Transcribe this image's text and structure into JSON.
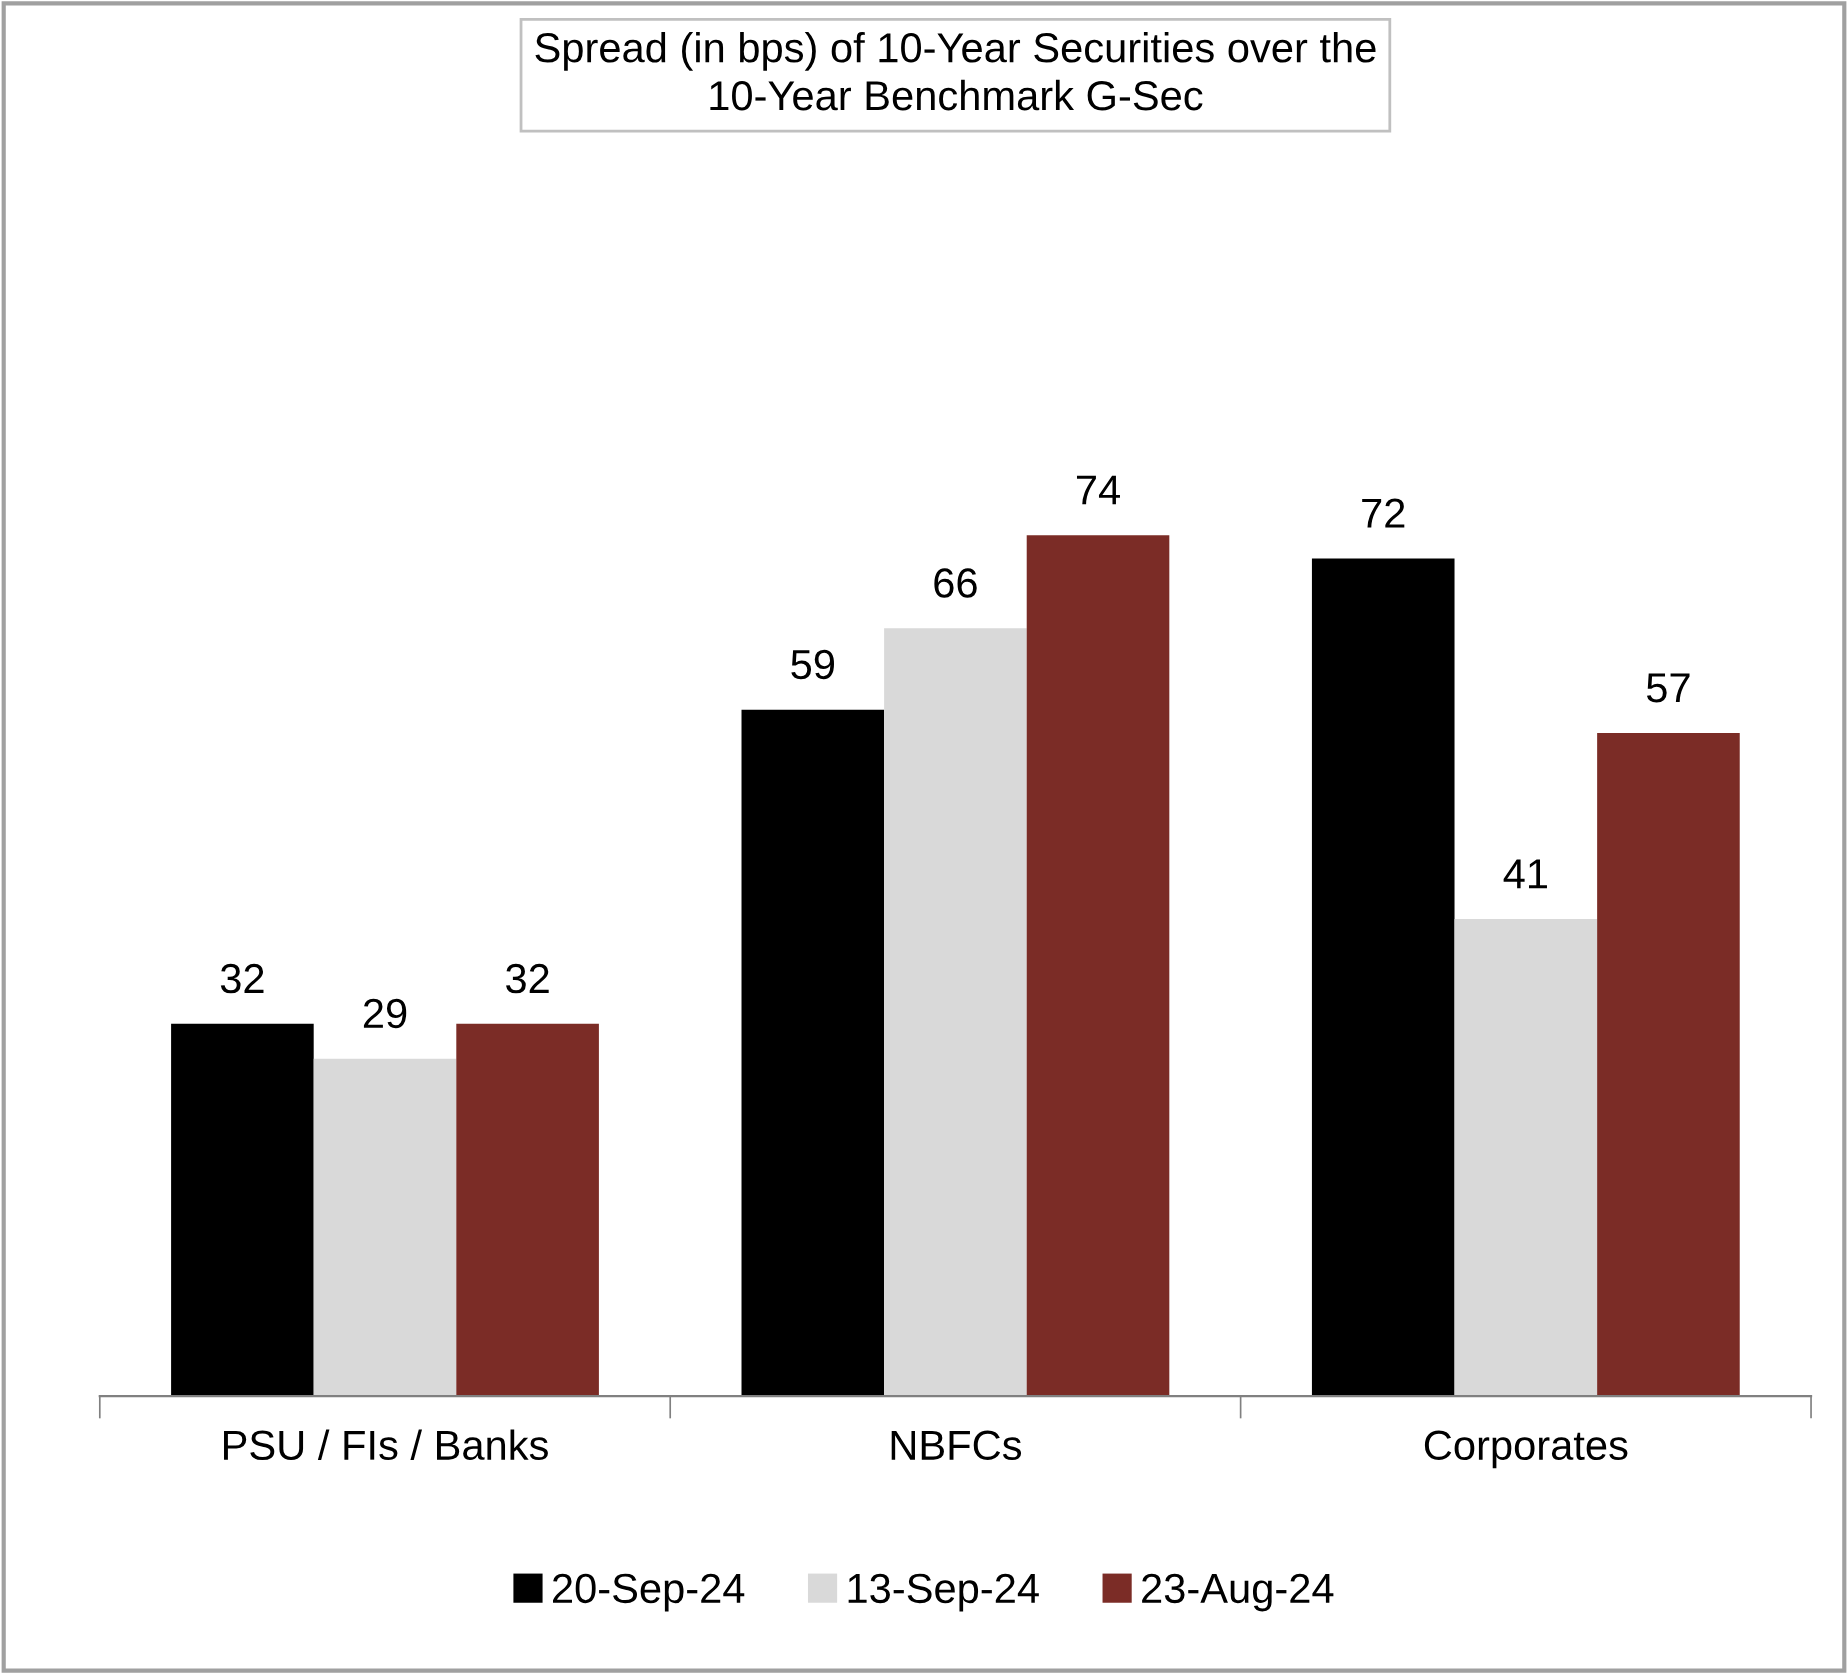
{
  "chart_data": {
    "type": "bar",
    "title": "Spread (in bps) of 10-Year Securities over the\n10-Year Benchmark G-Sec",
    "categories": [
      "PSU / FIs / Banks",
      "NBFCs",
      "Corporates"
    ],
    "series": [
      {
        "name": "20-Sep-24",
        "color": "#000000",
        "values": [
          32,
          59,
          72
        ]
      },
      {
        "name": "13-Sep-24",
        "color": "#d9d9d9",
        "values": [
          29,
          66,
          41
        ]
      },
      {
        "name": "23-Aug-24",
        "color": "#7b2c26",
        "values": [
          32,
          74,
          57
        ]
      }
    ],
    "data_labels": true,
    "legend": "bottom",
    "grid": false,
    "tick_labels": "x"
  }
}
